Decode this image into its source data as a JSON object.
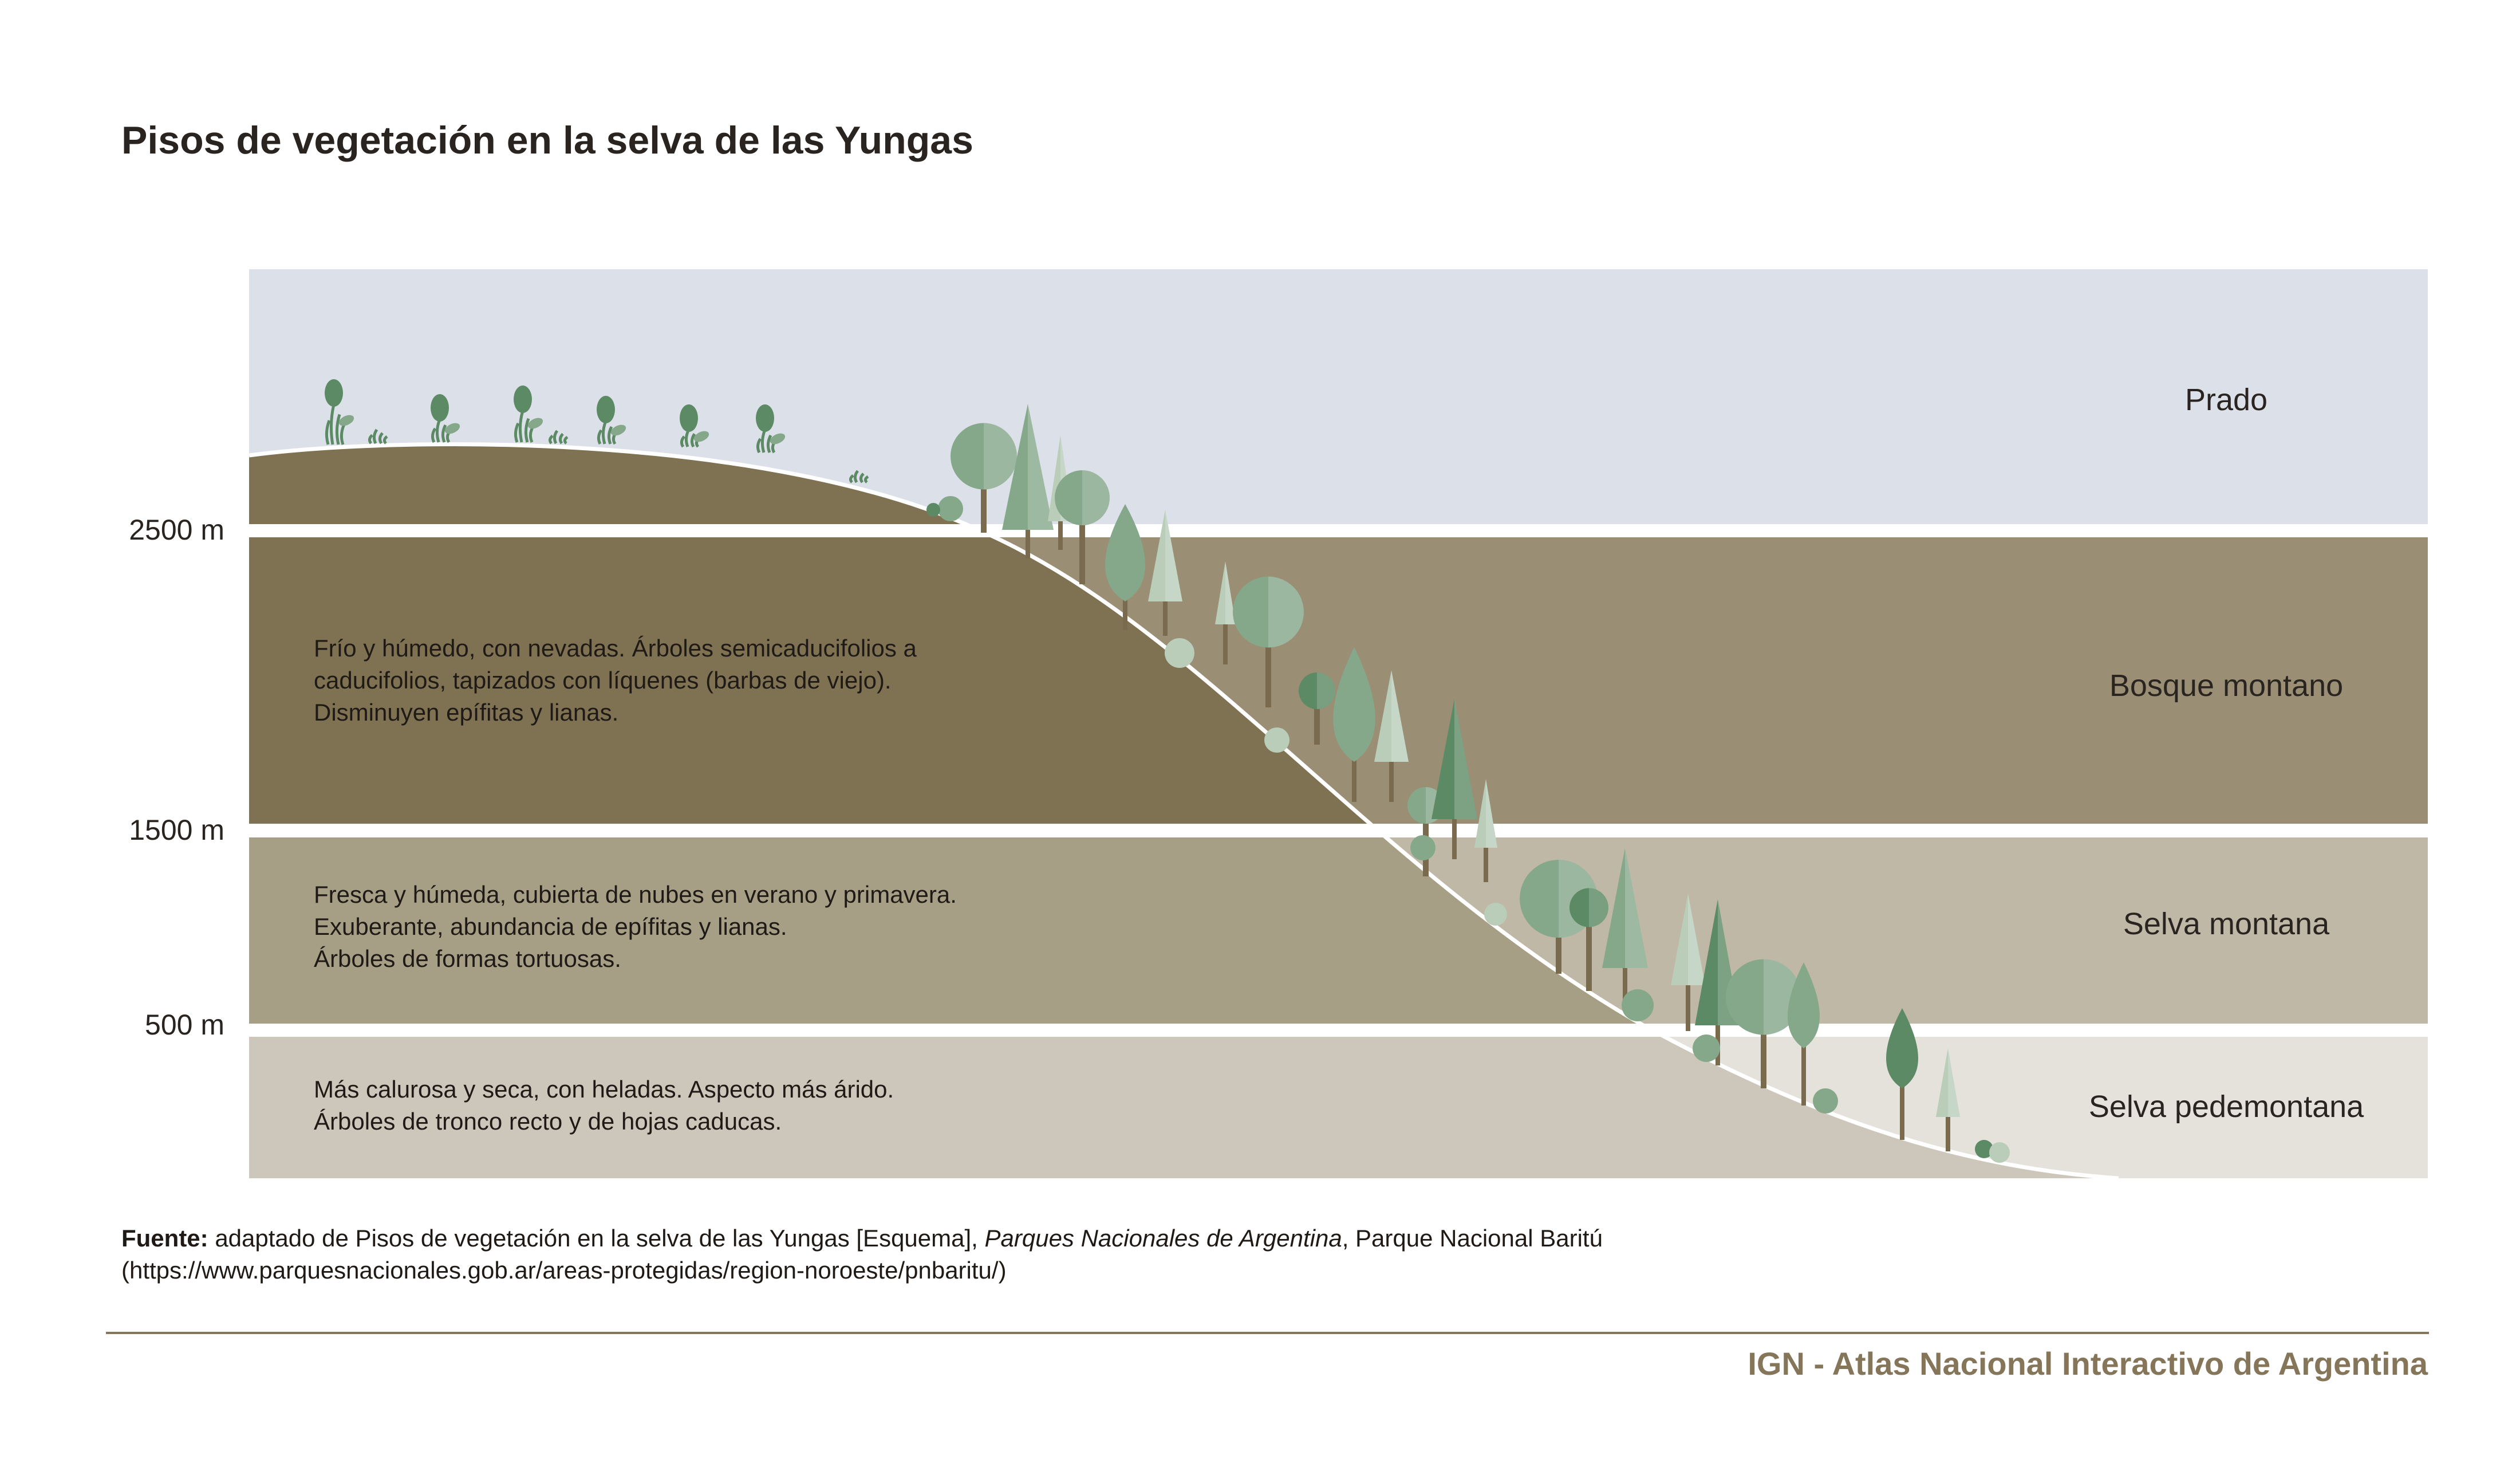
{
  "title": "Pisos de vegetación en la selva de las Yungas",
  "altitudes": [
    "2500 m",
    "1500 m",
    "500 m"
  ],
  "zones": [
    {
      "name": "Prado",
      "lines": []
    },
    {
      "name": "Bosque montano",
      "lines": [
        "Frío y húmedo, con nevadas. Árboles semicaducifolios a",
        "caducifolios, tapizados con líquenes (barbas de viejo).",
        "Disminuyen epífitas y lianas."
      ]
    },
    {
      "name": "Selva montana",
      "lines": [
        "Fresca y húmeda, cubierta de nubes en verano y primavera.",
        "Exuberante, abundancia de epífitas y lianas.",
        "Árboles de formas tortuosas."
      ]
    },
    {
      "name": "Selva pedemontana",
      "lines": [
        "Más calurosa y seca, con heladas. Aspecto más árido.",
        "Árboles de tronco recto y de hojas caducas."
      ]
    }
  ],
  "source": {
    "label": "Fuente:",
    "text_before": " adaptado de Pisos de vegetación en la selva de las Yungas [Esquema], ",
    "italic": "Parques Nacionales de Argentina",
    "text_after": ", Parque Nacional Baritú",
    "url": "(https://www.parquesnacionales.gob.ar/areas-protegidas/region-noroeste/pnbaritu/)"
  },
  "credit": "IGN - Atlas Nacional Interactivo de Argentina",
  "colors": {
    "sky": "#dce0e9",
    "band_montano": "#9a8f74",
    "band_montana": "#c0b8a6",
    "band_pedemontana": "#e5e2dc",
    "ground_prado": "#7f7252",
    "ground_montano": "#7f7252",
    "ground_montana": "#a79e86",
    "ground_pedemontana": "#cdc7bb",
    "tree_dark": "#5c8a64",
    "tree_mid": "#86a88a",
    "tree_light": "#b9cdb9",
    "trunk": "#7a6a4e",
    "credit": "#85765a",
    "rule": "#85765a"
  }
}
